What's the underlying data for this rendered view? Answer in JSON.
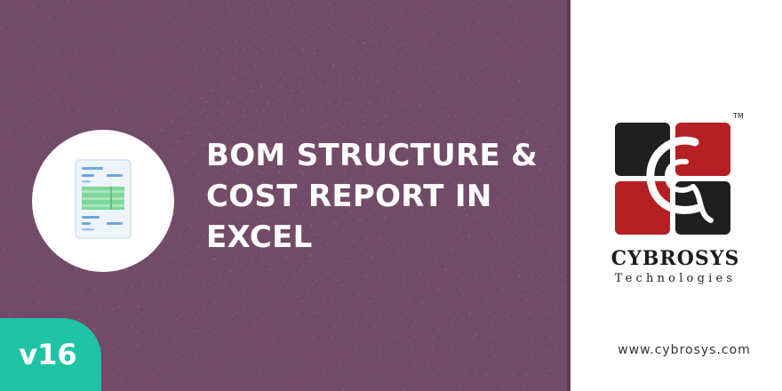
{
  "banner": {
    "title_lines": [
      "BOM STRUCTURE &",
      "COST REPORT IN",
      "EXCEL"
    ],
    "version_badge": "v16",
    "icon": "spreadsheet-document-icon"
  },
  "brand": {
    "name": "CYBROSYS",
    "subtitle": "Technologies",
    "trademark": "TM",
    "logo_icon": "cybrosys-logo-icon",
    "website": "www.cybrosys.com"
  },
  "colors": {
    "panel": "#714b67",
    "badge": "#1fc4a6",
    "logo_red": "#b52025",
    "logo_dark": "#1f1f1f"
  }
}
